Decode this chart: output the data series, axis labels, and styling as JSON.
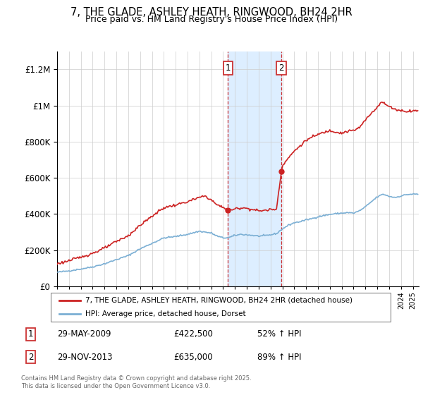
{
  "title": "7, THE GLADE, ASHLEY HEATH, RINGWOOD, BH24 2HR",
  "subtitle": "Price paid vs. HM Land Registry's House Price Index (HPI)",
  "legend_line1": "7, THE GLADE, ASHLEY HEATH, RINGWOOD, BH24 2HR (detached house)",
  "legend_line2": "HPI: Average price, detached house, Dorset",
  "footnote": "Contains HM Land Registry data © Crown copyright and database right 2025.\nThis data is licensed under the Open Government Licence v3.0.",
  "sale1_date": "29-MAY-2009",
  "sale1_price": "£422,500",
  "sale1_hpi": "52% ↑ HPI",
  "sale2_date": "29-NOV-2013",
  "sale2_price": "£635,000",
  "sale2_hpi": "89% ↑ HPI",
  "sale1_year": 2009.41,
  "sale2_year": 2013.91,
  "sale1_value": 422500,
  "sale2_value": 635000,
  "hpi_color": "#7bafd4",
  "price_color": "#cc2222",
  "highlight_color": "#ddeeff",
  "box_color": "#cc3333",
  "ylim_max": 1300000,
  "xlim_min": 1995,
  "xlim_max": 2025.5
}
